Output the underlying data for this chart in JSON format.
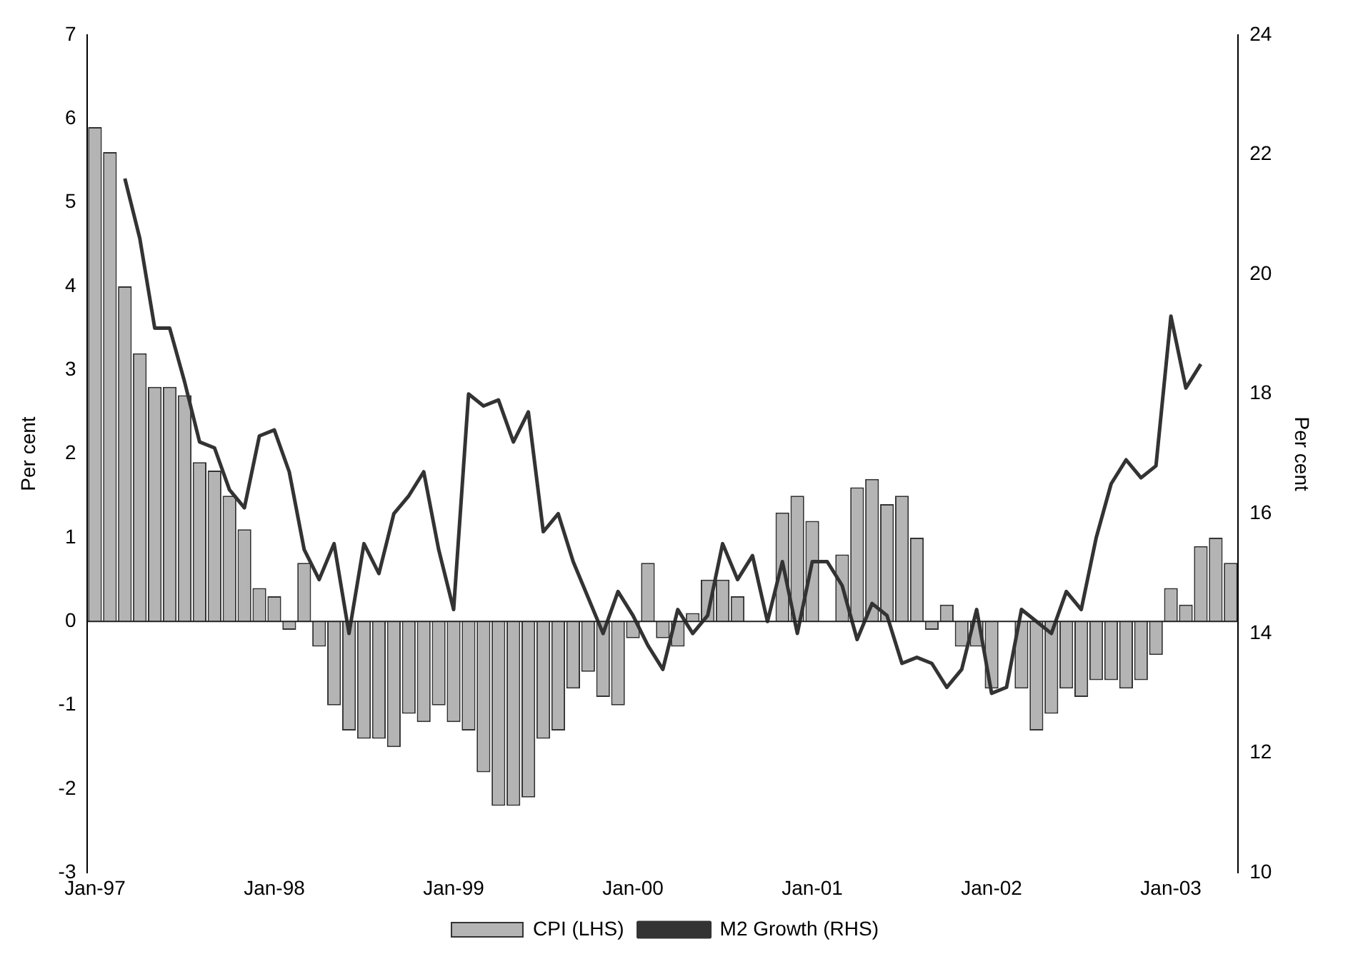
{
  "chart_data": {
    "type": "bar",
    "ylabel": "Per cent",
    "y2label": "Per cent",
    "categories": [
      "Jan-97",
      null,
      null,
      null,
      null,
      null,
      null,
      null,
      null,
      null,
      null,
      null,
      "Jan-98",
      null,
      null,
      null,
      null,
      null,
      null,
      null,
      null,
      null,
      null,
      null,
      "Jan-99",
      null,
      null,
      null,
      null,
      null,
      null,
      null,
      null,
      null,
      null,
      null,
      "Jan-00",
      null,
      null,
      null,
      null,
      null,
      null,
      null,
      null,
      null,
      null,
      null,
      "Jan-01",
      null,
      null,
      null,
      null,
      null,
      null,
      null,
      null,
      null,
      null,
      null,
      "Jan-02",
      null,
      null,
      null,
      null,
      null,
      null,
      null,
      null,
      null,
      null,
      null,
      "Jan-03",
      null,
      null,
      null,
      null
    ],
    "series": [
      {
        "name": "CPI (LHS)",
        "color": "#b4b4b4",
        "values": [
          5.9,
          5.6,
          4.0,
          3.2,
          2.8,
          2.8,
          2.7,
          1.9,
          1.8,
          1.5,
          1.1,
          0.4,
          0.3,
          -0.1,
          0.7,
          -0.3,
          -1.0,
          -1.3,
          -1.4,
          -1.4,
          -1.5,
          -1.1,
          -1.2,
          -1.0,
          -1.2,
          -1.3,
          -1.8,
          -2.2,
          -2.2,
          -2.1,
          -1.4,
          -1.3,
          -0.8,
          -0.6,
          -0.9,
          -1.0,
          -0.2,
          0.7,
          -0.2,
          -0.3,
          0.1,
          0.5,
          0.5,
          0.3,
          0,
          0,
          1.3,
          1.5,
          1.2,
          0,
          0.8,
          1.6,
          1.7,
          1.4,
          1.5,
          1.0,
          -0.1,
          0.2,
          -0.3,
          -0.3,
          -0.8,
          0,
          -0.8,
          -1.3,
          -1.1,
          -0.8,
          -0.9,
          -0.7,
          -0.7,
          -0.8,
          -0.7,
          -0.4,
          0.4,
          0.2,
          0.9,
          1.0,
          0.7
        ]
      },
      {
        "name": "M2 Growth (RHS)",
        "type": "line",
        "axis": "y2",
        "color": "#333333",
        "values": [
          null,
          null,
          21.6,
          20.6,
          19.1,
          19.1,
          18.2,
          17.2,
          17.1,
          16.4,
          16.1,
          17.3,
          17.4,
          16.7,
          15.4,
          14.9,
          15.5,
          14.0,
          15.5,
          15.0,
          16.0,
          16.3,
          16.7,
          15.4,
          14.4,
          18.0,
          17.8,
          17.9,
          17.2,
          17.7,
          15.7,
          16.0,
          15.2,
          14.6,
          14.0,
          14.7,
          14.3,
          13.8,
          13.4,
          14.4,
          14.0,
          14.3,
          15.5,
          14.9,
          15.3,
          14.2,
          15.2,
          14.0,
          15.2,
          15.2,
          14.8,
          13.9,
          14.5,
          14.3,
          13.5,
          13.6,
          13.5,
          13.1,
          13.4,
          14.4,
          13.0,
          13.1,
          14.4,
          14.2,
          14.0,
          14.7,
          14.4,
          15.6,
          16.5,
          16.9,
          16.6,
          16.8,
          19.3,
          18.1,
          18.5,
          null,
          null
        ]
      }
    ],
    "ylim": [
      -3,
      7
    ],
    "yticks": [
      -3,
      -2,
      -1,
      0,
      1,
      2,
      3,
      4,
      5,
      6,
      7
    ],
    "y2lim": [
      10,
      24
    ],
    "y2ticks": [
      10,
      12,
      14,
      16,
      18,
      20,
      22,
      24
    ],
    "ref_lines": [
      {
        "axis": "y",
        "value": 0,
        "color": "#222222"
      }
    ],
    "grid": false,
    "legend": "bottom",
    "marker": "none",
    "line_style": "solid"
  }
}
